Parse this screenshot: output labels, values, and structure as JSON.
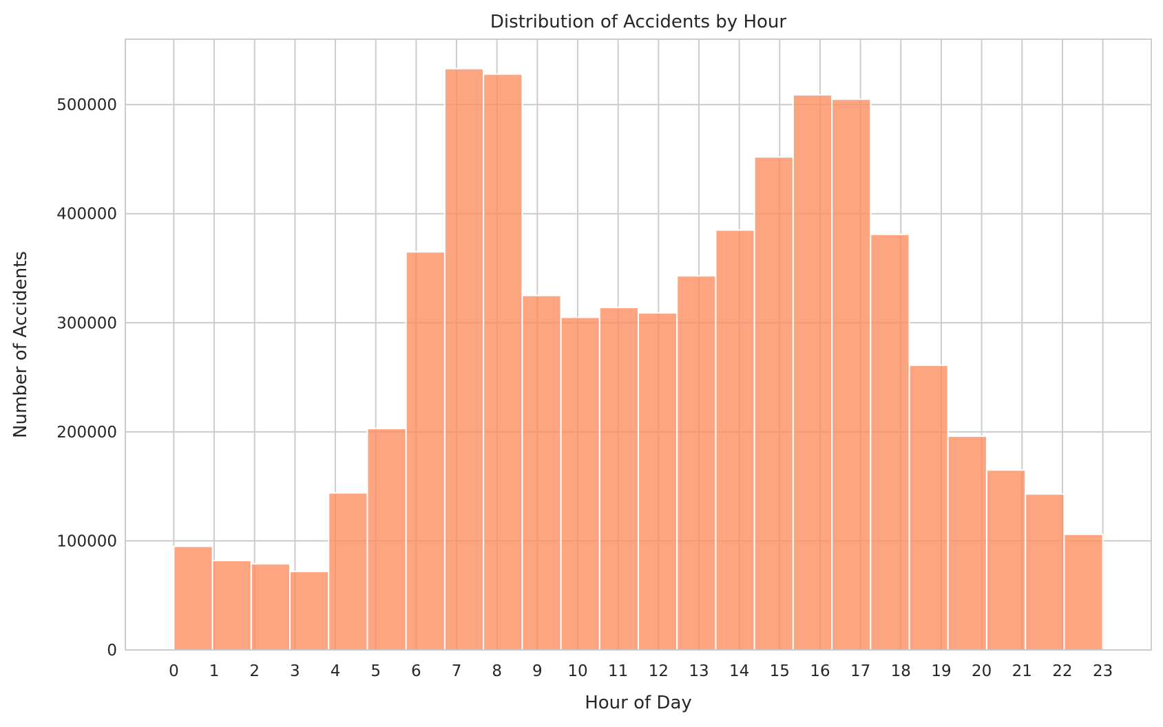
{
  "chart_data": {
    "type": "bar",
    "title": "Distribution of Accidents by Hour",
    "xlabel": "Hour of Day",
    "ylabel": "Number of Accidents",
    "categories": [
      "0",
      "1",
      "2",
      "3",
      "4",
      "5",
      "6",
      "7",
      "8",
      "9",
      "10",
      "11",
      "12",
      "13",
      "14",
      "15",
      "16",
      "17",
      "18",
      "19",
      "20",
      "21",
      "22",
      "23"
    ],
    "values": [
      95000,
      82000,
      79000,
      72000,
      144000,
      203000,
      365000,
      533000,
      528000,
      325000,
      305000,
      314000,
      309000,
      343000,
      385000,
      452000,
      509000,
      505000,
      381000,
      261000,
      196000,
      165000,
      143000,
      106000
    ],
    "ylim": [
      0,
      560000
    ],
    "yticks": [
      0,
      100000,
      200000,
      300000,
      400000,
      500000
    ],
    "xlim": [
      -1.2,
      24.2
    ],
    "grid": true,
    "colors": {
      "bar": "#fc8d62",
      "grid": "#cccccc",
      "axes_edge": "#cccccc",
      "text": "#262626"
    }
  }
}
